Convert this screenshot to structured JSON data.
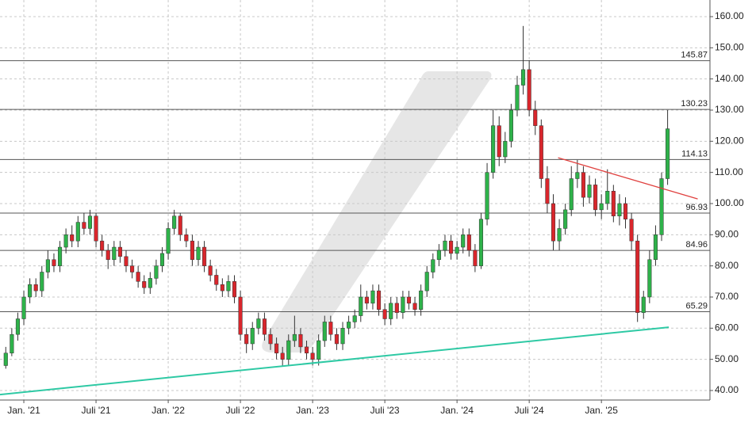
{
  "chart_data": {
    "type": "candlestick",
    "x": [
      -1.5,
      -1,
      -0.5,
      0,
      0.5,
      1,
      1.5,
      2,
      2.5,
      3,
      3.5,
      4,
      4.5,
      5,
      5.5,
      6,
      6.5,
      7,
      7.5,
      8,
      8.5,
      9,
      9.5,
      10,
      10.5,
      11,
      11.5,
      12,
      12.5,
      13,
      13.5,
      14,
      14.5,
      15,
      15.5,
      16,
      16.5,
      17,
      17.5,
      18,
      18.5,
      19,
      19.5,
      20,
      20.5,
      21,
      21.5,
      22,
      22.5,
      23,
      23.5,
      24,
      24.5,
      25,
      25.5,
      26,
      26.5,
      27,
      27.5,
      28,
      28.5,
      29,
      29.5,
      30,
      30.5,
      31,
      31.5,
      32,
      32.5,
      33,
      33.5,
      34,
      34.5,
      35,
      35.5,
      36,
      36.5,
      37,
      37.5,
      38,
      38.5,
      39,
      39.5,
      40,
      40.5,
      41,
      41.5,
      42,
      42.5,
      43,
      43.5,
      44,
      44.5,
      45,
      45.5,
      46,
      46.5,
      47,
      47.5,
      48,
      48.5,
      49,
      49.5,
      50,
      50.5,
      51,
      51.5,
      52,
      52.5,
      53,
      53.5
    ],
    "open": [
      48,
      52,
      58,
      63,
      70,
      74,
      72,
      78,
      82,
      80,
      86,
      90,
      88,
      94,
      92,
      96,
      88,
      85,
      82,
      86,
      83,
      80,
      78,
      75,
      73,
      76,
      80,
      84,
      92,
      96,
      90,
      88,
      82,
      86,
      80,
      77,
      74,
      72,
      75,
      70,
      58,
      55,
      60,
      63,
      58,
      55,
      52,
      50,
      56,
      58,
      54,
      52,
      50,
      56,
      62,
      58,
      55,
      60,
      62,
      64,
      70,
      68,
      72,
      66,
      63,
      68,
      65,
      70,
      68,
      66,
      72,
      78,
      82,
      85,
      88,
      84,
      86,
      90,
      85,
      80,
      95,
      110,
      125,
      115,
      120,
      130,
      138,
      143,
      130,
      125,
      108,
      100,
      88,
      92,
      98,
      108,
      110,
      102,
      106,
      98,
      100,
      104,
      96,
      100,
      95,
      88,
      65,
      70,
      82,
      90,
      108
    ],
    "high": [
      54,
      60,
      65,
      72,
      76,
      76,
      80,
      85,
      84,
      88,
      92,
      93,
      96,
      97,
      98,
      97,
      90,
      87,
      88,
      88,
      85,
      82,
      80,
      77,
      78,
      82,
      86,
      94,
      98,
      97,
      92,
      90,
      88,
      88,
      82,
      79,
      76,
      77,
      77,
      72,
      60,
      62,
      65,
      65,
      60,
      57,
      54,
      58,
      64,
      60,
      56,
      54,
      58,
      64,
      64,
      60,
      62,
      64,
      66,
      74,
      72,
      74,
      74,
      68,
      70,
      70,
      72,
      72,
      70,
      74,
      80,
      84,
      87,
      90,
      90,
      88,
      92,
      92,
      87,
      97,
      113,
      130,
      128,
      123,
      132,
      141,
      157,
      146,
      133,
      127,
      112,
      103,
      95,
      100,
      112,
      114,
      112,
      109,
      108,
      103,
      111,
      106,
      103,
      102,
      97,
      90,
      72,
      85,
      93,
      110,
      130
    ],
    "low": [
      47,
      51,
      56,
      61,
      68,
      70,
      70,
      76,
      78,
      78,
      84,
      86,
      86,
      90,
      90,
      86,
      83,
      79,
      80,
      81,
      78,
      76,
      73,
      71,
      71,
      74,
      78,
      82,
      90,
      88,
      86,
      80,
      80,
      78,
      75,
      72,
      70,
      70,
      68,
      56,
      52,
      53,
      58,
      56,
      53,
      50,
      48,
      48,
      54,
      52,
      50,
      48,
      48,
      54,
      56,
      53,
      53,
      58,
      60,
      62,
      66,
      66,
      64,
      61,
      61,
      63,
      63,
      66,
      64,
      64,
      70,
      76,
      80,
      83,
      82,
      82,
      84,
      83,
      78,
      79,
      93,
      108,
      112,
      113,
      118,
      128,
      135,
      128,
      122,
      105,
      97,
      85,
      85,
      90,
      96,
      105,
      99,
      100,
      96,
      95,
      98,
      94,
      93,
      92,
      85,
      62,
      63,
      68,
      80,
      88,
      106
    ],
    "close": [
      52,
      58,
      63,
      70,
      74,
      72,
      78,
      82,
      80,
      86,
      90,
      88,
      94,
      92,
      96,
      88,
      85,
      82,
      86,
      83,
      80,
      78,
      75,
      73,
      76,
      80,
      84,
      92,
      96,
      90,
      88,
      82,
      86,
      80,
      77,
      74,
      72,
      75,
      70,
      58,
      55,
      60,
      63,
      58,
      55,
      52,
      50,
      56,
      58,
      54,
      52,
      50,
      56,
      62,
      58,
      55,
      60,
      62,
      64,
      70,
      68,
      72,
      66,
      63,
      68,
      65,
      70,
      68,
      66,
      72,
      78,
      82,
      85,
      88,
      84,
      86,
      90,
      85,
      80,
      95,
      110,
      125,
      115,
      120,
      130,
      138,
      143,
      130,
      125,
      108,
      100,
      88,
      92,
      98,
      108,
      110,
      102,
      106,
      98,
      100,
      104,
      96,
      100,
      95,
      88,
      65,
      70,
      82,
      90,
      108,
      124
    ],
    "up_color": "#2eb24a",
    "down_color": "#d9262c",
    "xlim": [
      -1.98,
      57.02
    ],
    "ylim": [
      36.94,
      165.34
    ],
    "xticks": [
      {
        "value": 0,
        "label": "Jan. '21"
      },
      {
        "value": 6,
        "label": "Juli '21"
      },
      {
        "value": 12,
        "label": "Jan. '22"
      },
      {
        "value": 18,
        "label": "Juli '22"
      },
      {
        "value": 24,
        "label": "Jan. '23"
      },
      {
        "value": 30,
        "label": "Juli '23"
      },
      {
        "value": 36,
        "label": "Jan. '24"
      },
      {
        "value": 42,
        "label": "Juli '24"
      },
      {
        "value": 48,
        "label": "Jan. '25"
      }
    ],
    "yticks": [
      {
        "value": 40,
        "label": "40.00"
      },
      {
        "value": 50,
        "label": "50.00"
      },
      {
        "value": 60,
        "label": "60.00"
      },
      {
        "value": 70,
        "label": "70.00"
      },
      {
        "value": 80,
        "label": "80.00"
      },
      {
        "value": 90,
        "label": "90.00"
      },
      {
        "value": 100,
        "label": "100.00"
      },
      {
        "value": 110,
        "label": "110.00"
      },
      {
        "value": 120,
        "label": "120.00"
      },
      {
        "value": 130,
        "label": "130.00"
      },
      {
        "value": 140,
        "label": "140.00"
      },
      {
        "value": 150,
        "label": "150.00"
      },
      {
        "value": 160,
        "label": "160.00"
      }
    ],
    "grid": true,
    "levels": [
      145.87,
      130.23,
      114.13,
      96.93,
      84.96,
      65.29
    ],
    "level_color": "#555555",
    "trendlines": [
      {
        "color": "#2ec9a4",
        "x": [
          -1.98,
          53.6
        ],
        "values": [
          38.7,
          60.3
        ]
      },
      {
        "color": "#e0413f",
        "x": [
          44.4,
          56.0
        ],
        "values": [
          114.7,
          101.5
        ]
      }
    ]
  }
}
